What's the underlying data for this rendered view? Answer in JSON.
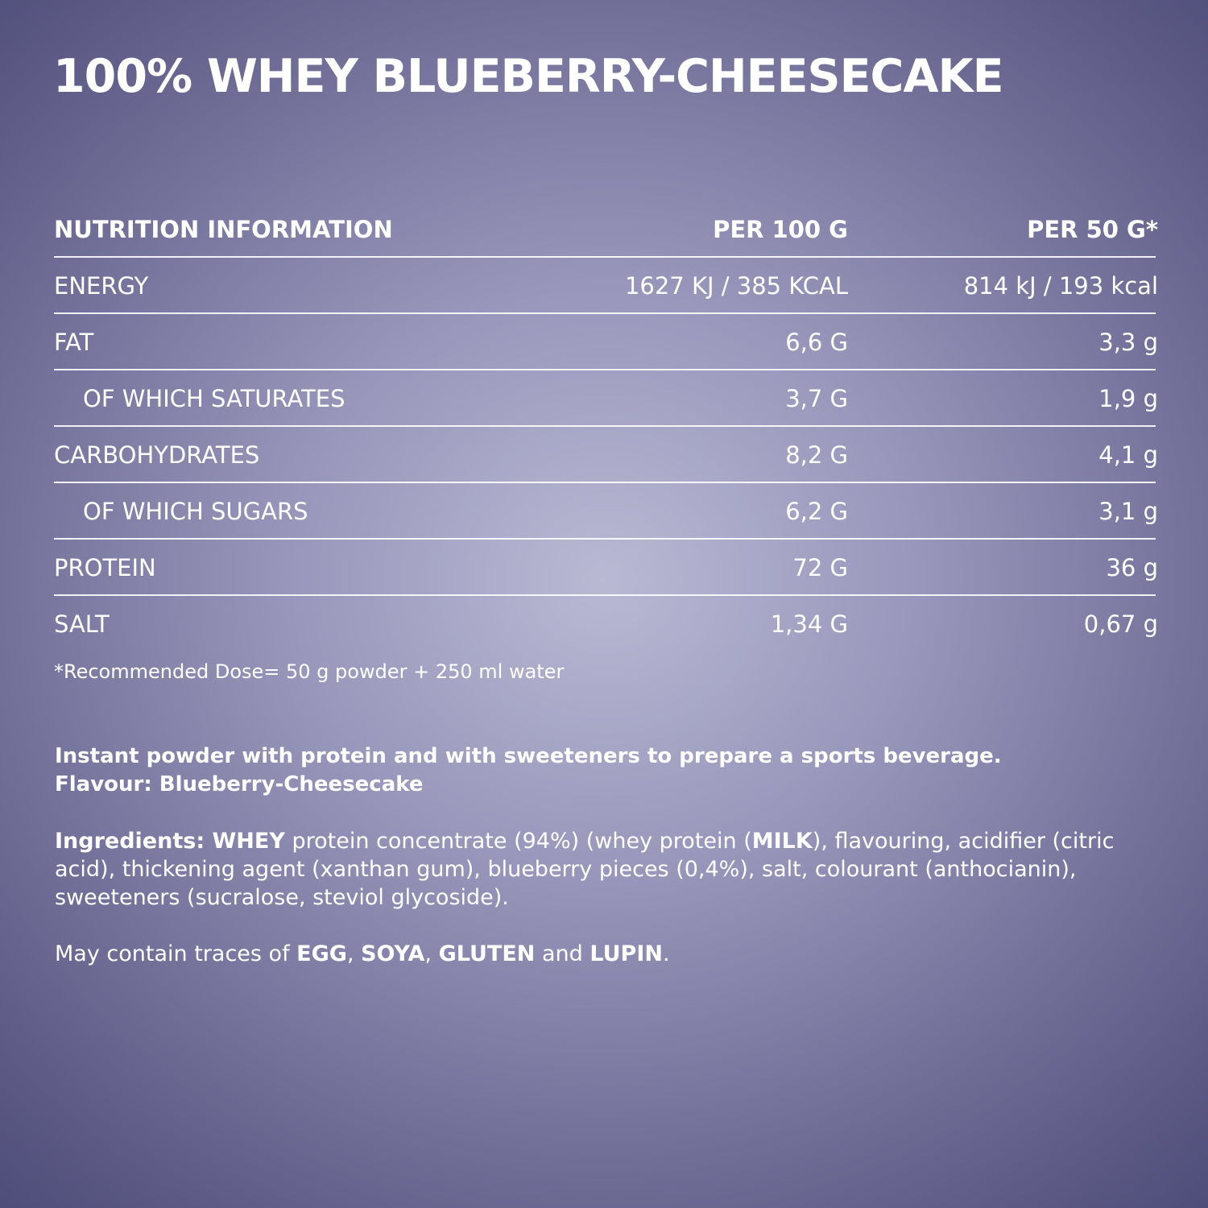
{
  "title": "100% WHEY BLUEBERRY-CHEESECAKE",
  "table": {
    "header": [
      "NUTRITION INFORMATION",
      "PER 100 G",
      "PER 50 G*"
    ],
    "rows": [
      [
        "ENERGY",
        "1627 KJ / 385 KCAL",
        "814 kJ / 193 kcal"
      ],
      [
        "FAT",
        "6,6 G",
        "3,3 g"
      ],
      [
        "OF WHICH SATURATES",
        "3,7 G",
        "1,9 g"
      ],
      [
        "CARBOHYDRATES",
        "8,2 G",
        "4,1 g"
      ],
      [
        "OF WHICH SUGARS",
        "6,2 G",
        "3,1 g"
      ],
      [
        "PROTEIN",
        "72 G",
        "36 g"
      ],
      [
        "SALT",
        "1,34 G",
        "0,67 g"
      ]
    ]
  },
  "footnote": "*Recommended Dose= 50 g powder + 250 ml water",
  "description": [
    "Instant powder with protein and with sweeteners to prepare a sports beverage.",
    "Flavour: Blueberry-Cheesecake"
  ],
  "ingredients": [
    "Ingredients: WHEY",
    " protein concentrate (94%) (whey protein (",
    "MILK",
    "), flavouring, acidifier (citric acid), thickening agent (xanthan gum), blueberry pieces (0,4%), salt, colourant (anthocianin), sweeteners (sucralose, steviol glycoside)."
  ],
  "allergens": [
    "May contain traces of ",
    "EGG",
    ", ",
    "SOYA",
    ", ",
    "GLUTEN",
    " and ",
    "LUPIN",
    "."
  ]
}
